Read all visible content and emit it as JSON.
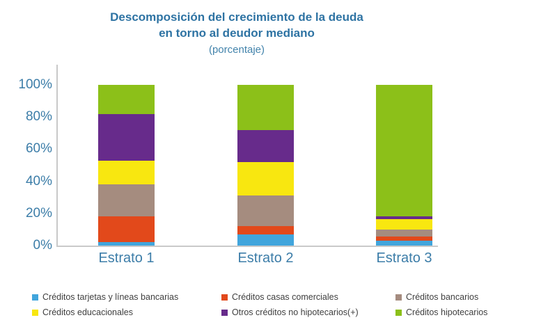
{
  "title": {
    "line1": "Descomposición del crecimiento de la deuda",
    "line2": "en torno al deudor mediano",
    "subtitle": "(porcentaje)"
  },
  "chart_data": {
    "type": "bar",
    "stacked": true,
    "title": "Descomposición del crecimiento de la deuda en torno al deudor mediano",
    "subtitle": "(porcentaje)",
    "categories": [
      "Estrato 1",
      "Estrato 2",
      "Estrato 3"
    ],
    "series": [
      {
        "name": "Créditos tarjetas y líneas bancarias",
        "color": "#41a5dc",
        "values": [
          2,
          7,
          3
        ]
      },
      {
        "name": "Créditos casas comerciales",
        "color": "#e2491b",
        "values": [
          16,
          5,
          2.5
        ]
      },
      {
        "name": "Créditos bancarios",
        "color": "#a58c7f",
        "values": [
          20,
          19,
          4.5
        ]
      },
      {
        "name": "Créditos educacionales",
        "color": "#f8e710",
        "values": [
          15,
          21,
          6.5
        ]
      },
      {
        "name": "Otros créditos no hipotecarios(+)",
        "color": "#672b8b",
        "values": [
          29,
          20,
          1.5
        ]
      },
      {
        "name": "Créditos hipotecarios",
        "color": "#8cc019",
        "values": [
          18,
          28,
          82
        ]
      }
    ],
    "ylim": [
      0,
      100
    ],
    "yticks": [
      "0%",
      "20%",
      "40%",
      "60%",
      "80%",
      "100%"
    ],
    "grid": false,
    "legend_position": "bottom"
  },
  "legend_display_order": [
    0,
    1,
    2,
    3,
    4,
    5
  ]
}
